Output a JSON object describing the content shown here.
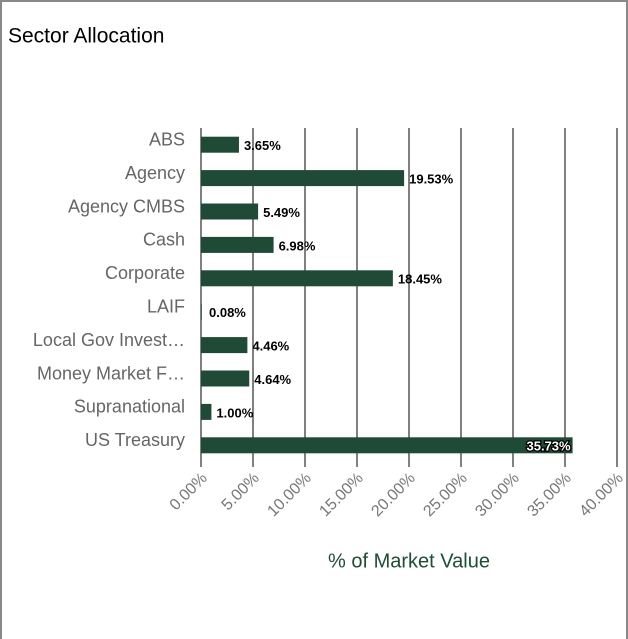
{
  "chart_data": {
    "type": "hbar",
    "title": "Sector Allocation",
    "x_label": "% of Market Value",
    "categories": [
      "ABS",
      "Agency",
      "Agency CMBS",
      "Cash",
      "Corporate",
      "LAIF",
      "Local Gov Invest…",
      "Money Market F…",
      "Supranational",
      "US Treasury"
    ],
    "values": [
      3.65,
      19.53,
      5.49,
      6.98,
      18.45,
      0.08,
      4.46,
      4.64,
      1.0,
      35.73
    ],
    "value_labels": [
      "3.65%",
      "19.53%",
      "5.49%",
      "6.98%",
      "18.45%",
      "0.08%",
      "4.46%",
      "4.64%",
      "1.00%",
      "35.73%"
    ],
    "color": "#1f4a36",
    "xlim": [
      0,
      40
    ],
    "xticks": [
      {
        "value": 0,
        "label": "0.00%"
      },
      {
        "value": 5,
        "label": "5.00%"
      },
      {
        "value": 10,
        "label": "10.00%"
      },
      {
        "value": 15,
        "label": "15.00%"
      },
      {
        "value": 20,
        "label": "20.00%"
      },
      {
        "value": 25,
        "label": "25.00%"
      },
      {
        "value": 30,
        "label": "30.00%"
      },
      {
        "value": 35,
        "label": "35.00%"
      },
      {
        "value": 40,
        "label": "40.00%"
      }
    ],
    "grid": true
  }
}
